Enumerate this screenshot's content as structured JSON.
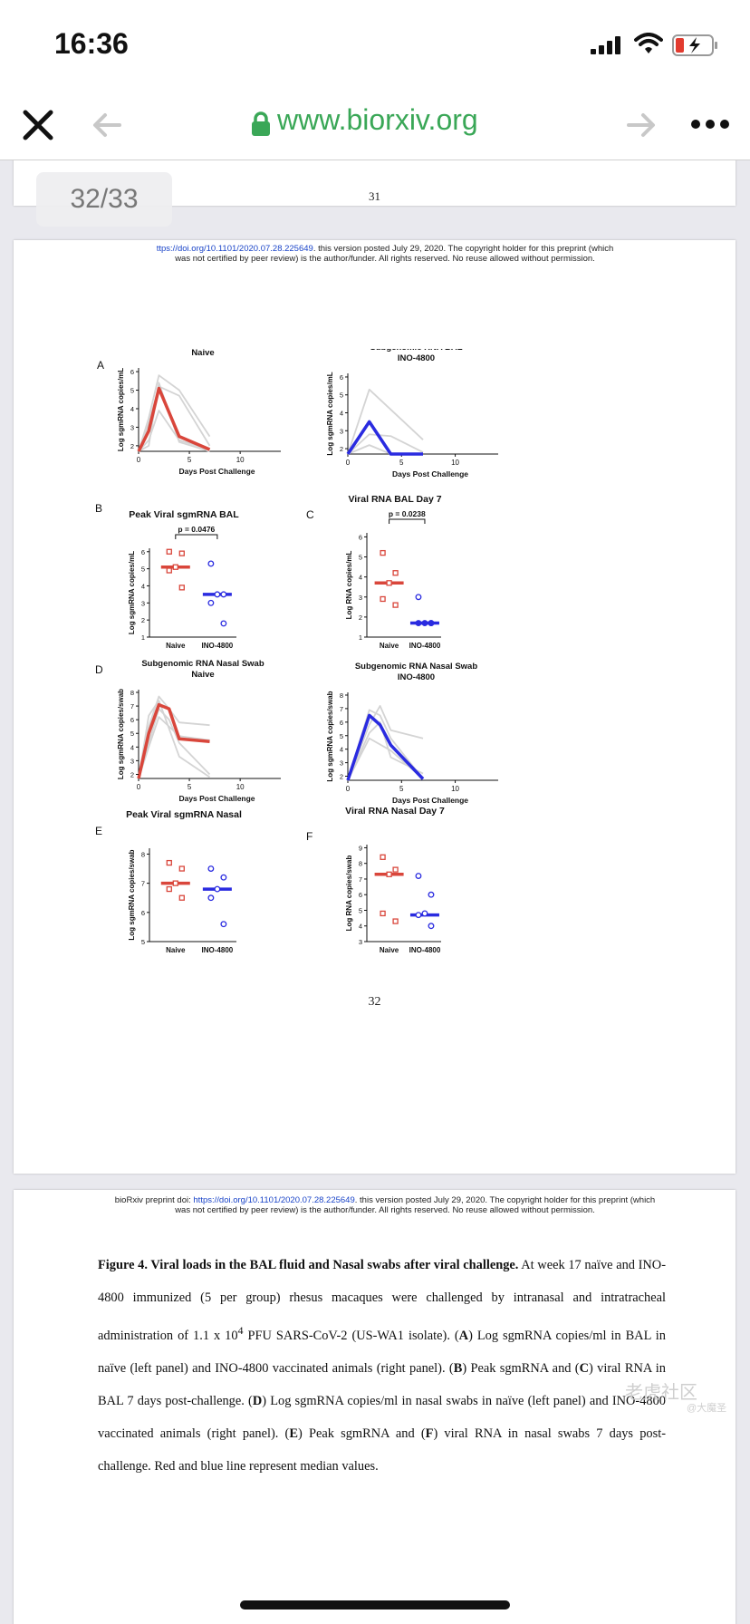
{
  "status": {
    "time": "16:36"
  },
  "browser": {
    "url": "www.biorxiv.org"
  },
  "viewer": {
    "page_indicator": "32/33"
  },
  "pages": {
    "p31": {
      "number": "31"
    },
    "p32": {
      "header1_link": "ttps://doi.org/10.1101/2020.07.28.225649",
      "header1_rest": ". this version posted July 29, 2020. The copyright holder for this preprint (which",
      "header2": "was not certified by peer review) is the author/funder. All rights reserved. No reuse allowed without permission.",
      "number": "32"
    },
    "p33": {
      "header1_pre": "bioRxiv preprint doi: ",
      "header1_link": "https://doi.org/10.1101/2020.07.28.225649",
      "header1_rest": ". this version posted July 29, 2020. The copyright holder for this preprint (which",
      "header2": "was not certified by peer review) is the author/funder. All rights reserved. No reuse allowed without permission.",
      "caption_title": "Figure 4. Viral loads in the BAL fluid and Nasal swabs after viral challenge.",
      "caption_s1": " At week 17 naïve and INO-4800 immunized (5 per group) rhesus macaques were challenged by intranasal and intratracheal administration of 1.1 x 10",
      "caption_sup": "4",
      "caption_s2": " PFU SARS-CoV-2 (US-WA1 isolate). (",
      "lA": "A",
      "caption_s3": ") Log sgmRNA copies/ml in BAL in naïve (left panel) and INO-4800 vaccinated animals (right panel).  (",
      "lB": "B",
      "caption_s4": ") Peak sgmRNA and (",
      "lC": "C",
      "caption_s5": ") viral RNA in BAL 7 days post-challenge.  (",
      "lD": "D",
      "caption_s6": ") Log sgmRNA copies/ml in nasal swabs in naïve (left panel) and INO-4800 vaccinated animals (right panel).  (",
      "lE": "E",
      "caption_s7": ") Peak sgmRNA and (",
      "lF": "F",
      "caption_s8": ") viral RNA in nasal swabs 7 days post-challenge. Red and blue line represent median values."
    }
  },
  "watermark": "老虎社区",
  "watermark2": "@大魔圣",
  "colors": {
    "naive": "#d9463b",
    "ino": "#2a2be0",
    "individual": "#d4d4d4",
    "link": "#1a44c8",
    "url": "#3aa757"
  },
  "chart_data": [
    {
      "type": "line",
      "panel": "A",
      "title": "Subgenomic RNA BAL",
      "subtitle": "Naive",
      "xlabel": "Days Post  Challenge",
      "ylabel": "Log sgmRNA copies/mL",
      "x_ticks": [
        "0",
        "5",
        "10"
      ],
      "y_ticks": [
        "2",
        "3",
        "4",
        "5",
        "6"
      ],
      "xlim": [
        0,
        14
      ],
      "ylim": [
        1.7,
        6.2
      ],
      "series": [
        {
          "role": "individual",
          "x": [
            0,
            1,
            2,
            4,
            7
          ],
          "y": [
            1.7,
            3.5,
            5.8,
            5.0,
            2.5
          ]
        },
        {
          "role": "individual",
          "x": [
            0,
            1,
            2,
            4,
            7
          ],
          "y": [
            1.7,
            3.2,
            5.2,
            4.7,
            2.0
          ]
        },
        {
          "role": "individual",
          "x": [
            0,
            1,
            2,
            4,
            7
          ],
          "y": [
            1.7,
            2.3,
            3.9,
            2.3,
            1.8
          ]
        },
        {
          "role": "individual",
          "x": [
            0,
            1,
            2,
            4,
            7
          ],
          "y": [
            1.7,
            2.0,
            5.4,
            2.2,
            1.7
          ]
        },
        {
          "role": "median",
          "x": [
            0,
            1,
            2,
            4,
            7
          ],
          "y": [
            1.7,
            2.8,
            5.1,
            2.5,
            1.8
          ]
        }
      ]
    },
    {
      "type": "line",
      "panel": "A2",
      "title": "Subgenomic RNA BAL",
      "subtitle": "INO-4800",
      "xlabel": "Days Post  Challenge",
      "ylabel": "Log sgmRNA copies/mL",
      "x_ticks": [
        "0",
        "5",
        "10"
      ],
      "y_ticks": [
        "2",
        "3",
        "4",
        "5",
        "6"
      ],
      "xlim": [
        0,
        14
      ],
      "ylim": [
        1.7,
        6.2
      ],
      "series": [
        {
          "role": "individual",
          "x": [
            0,
            2,
            7
          ],
          "y": [
            1.7,
            5.3,
            2.5
          ]
        },
        {
          "role": "individual",
          "x": [
            0,
            2,
            4,
            7
          ],
          "y": [
            1.7,
            2.8,
            2.7,
            1.8
          ]
        },
        {
          "role": "individual",
          "x": [
            0,
            2,
            4,
            7
          ],
          "y": [
            1.7,
            2.2,
            1.7,
            1.7
          ]
        },
        {
          "role": "median",
          "x": [
            0,
            2,
            4,
            7
          ],
          "y": [
            1.7,
            3.5,
            1.7,
            1.7
          ]
        }
      ]
    },
    {
      "type": "scatter",
      "panel": "B",
      "title": "Peak Viral sgmRNA BAL",
      "ylabel": "Log sgmRNA copies/mL",
      "categories": [
        "Naive",
        "INO-4800"
      ],
      "y_ticks": [
        "1",
        "2",
        "3",
        "4",
        "5",
        "6"
      ],
      "ylim": [
        1,
        6.2
      ],
      "annotation": "p = 0.0476",
      "groups": [
        {
          "name": "Naive",
          "values": [
            6.0,
            5.9,
            5.1,
            4.9,
            3.9
          ],
          "median": 5.1
        },
        {
          "name": "INO-4800",
          "values": [
            5.3,
            3.5,
            3.5,
            3.0,
            1.8
          ],
          "median": 3.5
        }
      ]
    },
    {
      "type": "scatter",
      "panel": "C",
      "title": "Viral RNA BAL Day 7",
      "ylabel": "Log RNA copies/mL",
      "categories": [
        "Naive",
        "INO-4800"
      ],
      "y_ticks": [
        "1",
        "2",
        "3",
        "4",
        "5",
        "6"
      ],
      "ylim": [
        1,
        6.2
      ],
      "annotation": "p = 0.0238",
      "groups": [
        {
          "name": "Naive",
          "values": [
            5.2,
            4.2,
            3.7,
            2.9,
            2.6
          ],
          "median": 3.7
        },
        {
          "name": "INO-4800",
          "values": [
            3.0,
            1.7,
            1.7,
            1.7,
            1.7
          ],
          "median": 1.7
        }
      ]
    },
    {
      "type": "line",
      "panel": "D",
      "title": "Subgenomic RNA Nasal Swab",
      "subtitle": "Naive",
      "xlabel": "Days Post  Challenge",
      "ylabel": "Log sgmRNA copies/swab",
      "x_ticks": [
        "0",
        "5",
        "10"
      ],
      "y_ticks": [
        "2",
        "3",
        "4",
        "5",
        "6",
        "7",
        "8"
      ],
      "xlim": [
        0,
        14
      ],
      "ylim": [
        1.7,
        8.2
      ],
      "series": [
        {
          "role": "individual",
          "x": [
            0,
            1,
            2,
            3,
            4,
            7
          ],
          "y": [
            1.7,
            5.5,
            7.7,
            6.8,
            5.8,
            5.6
          ]
        },
        {
          "role": "individual",
          "x": [
            0,
            1,
            2,
            4,
            7
          ],
          "y": [
            1.7,
            6.3,
            7.4,
            3.3,
            1.8
          ]
        },
        {
          "role": "individual",
          "x": [
            0,
            1,
            2,
            3,
            4,
            7
          ],
          "y": [
            1.7,
            4.3,
            6.8,
            6.0,
            4.3,
            2.0
          ]
        },
        {
          "role": "individual",
          "x": [
            0,
            1,
            2,
            4,
            7
          ],
          "y": [
            1.7,
            4.0,
            6.2,
            4.8,
            4.5
          ]
        },
        {
          "role": "median",
          "x": [
            0,
            1,
            2,
            3,
            4,
            7
          ],
          "y": [
            1.7,
            5.0,
            7.1,
            6.8,
            4.6,
            4.4
          ]
        }
      ]
    },
    {
      "type": "line",
      "panel": "D2",
      "title": "Subgenomic RNA Nasal Swab",
      "subtitle": "INO-4800",
      "xlabel": "Days Post  Challenge",
      "ylabel": "Log sgmRNA copies/swab",
      "x_ticks": [
        "0",
        "5",
        "10"
      ],
      "y_ticks": [
        "2",
        "3",
        "4",
        "5",
        "6",
        "7",
        "8"
      ],
      "xlim": [
        0,
        14
      ],
      "ylim": [
        1.7,
        8.2
      ],
      "series": [
        {
          "role": "individual",
          "x": [
            0,
            2,
            3,
            4,
            7
          ],
          "y": [
            1.7,
            5.8,
            7.2,
            5.4,
            4.8
          ]
        },
        {
          "role": "individual",
          "x": [
            0,
            2,
            3,
            4,
            7
          ],
          "y": [
            1.7,
            6.9,
            6.5,
            4.8,
            1.8
          ]
        },
        {
          "role": "individual",
          "x": [
            0,
            2,
            3,
            4,
            7
          ],
          "y": [
            1.7,
            5.2,
            6.0,
            3.4,
            2.2
          ]
        },
        {
          "role": "individual",
          "x": [
            0,
            2,
            4,
            7
          ],
          "y": [
            1.7,
            4.8,
            3.9,
            1.8
          ]
        },
        {
          "role": "median",
          "x": [
            0,
            2,
            3,
            4,
            7
          ],
          "y": [
            1.7,
            6.5,
            5.8,
            4.3,
            1.8
          ]
        }
      ]
    },
    {
      "type": "scatter",
      "panel": "E",
      "title": "Peak Viral sgmRNA Nasal",
      "ylabel": "Log sgmRNA copies/swab",
      "categories": [
        "Naive",
        "INO-4800"
      ],
      "y_ticks": [
        "5",
        "6",
        "7",
        "8"
      ],
      "ylim": [
        5,
        8.2
      ],
      "groups": [
        {
          "name": "Naive",
          "values": [
            7.7,
            7.5,
            7.0,
            6.8,
            6.5
          ],
          "median": 7.0
        },
        {
          "name": "INO-4800",
          "values": [
            7.5,
            7.2,
            6.8,
            6.5,
            5.6
          ],
          "median": 6.8
        }
      ]
    },
    {
      "type": "scatter",
      "panel": "F",
      "title": "Viral RNA Nasal Day 7",
      "ylabel": "Log RNA copies/swab",
      "categories": [
        "Naive",
        "INO-4800"
      ],
      "y_ticks": [
        "3",
        "4",
        "5",
        "6",
        "7",
        "8",
        "9"
      ],
      "ylim": [
        3,
        9.2
      ],
      "groups": [
        {
          "name": "Naive",
          "values": [
            8.4,
            7.6,
            7.3,
            4.8,
            4.3
          ],
          "median": 7.3
        },
        {
          "name": "INO-4800",
          "values": [
            7.2,
            6.0,
            4.8,
            4.7,
            4.0
          ],
          "median": 4.7
        }
      ]
    }
  ]
}
